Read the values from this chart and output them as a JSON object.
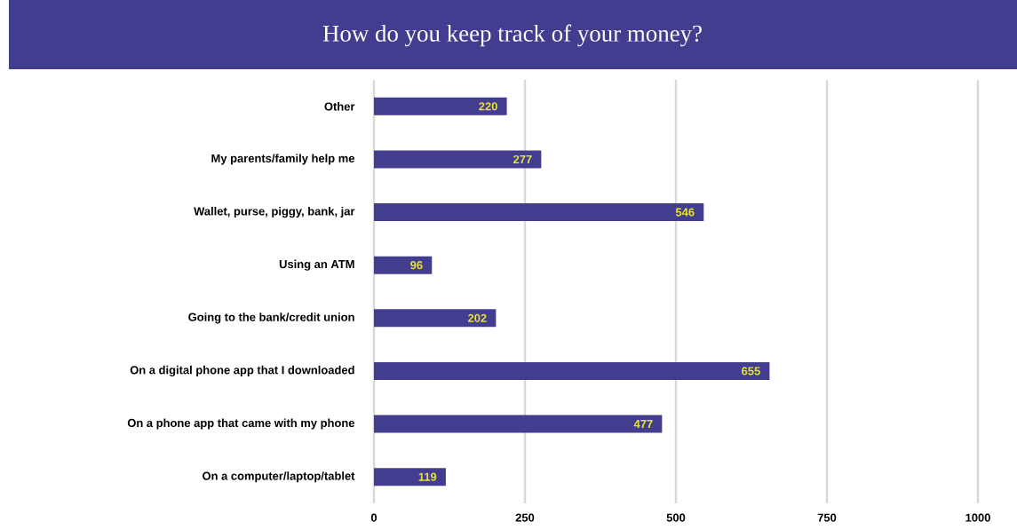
{
  "chart_data": {
    "type": "bar",
    "orientation": "horizontal",
    "title": "How do you keep track of your money?",
    "categories": [
      "Other",
      "My parents/family help me",
      "Wallet, purse, piggy, bank, jar",
      "Using an ATM",
      "Going to the bank/credit union",
      "On a digital phone app that I downloaded",
      "On a phone app that came with my phone",
      "On a computer/laptop/tablet"
    ],
    "values": [
      220,
      277,
      546,
      96,
      202,
      655,
      477,
      119
    ],
    "color": "#433d8f",
    "xlim": [
      0,
      1000
    ],
    "xticks": [
      0,
      250,
      500,
      750,
      1000
    ],
    "grid": "x",
    "data_labels": true
  }
}
